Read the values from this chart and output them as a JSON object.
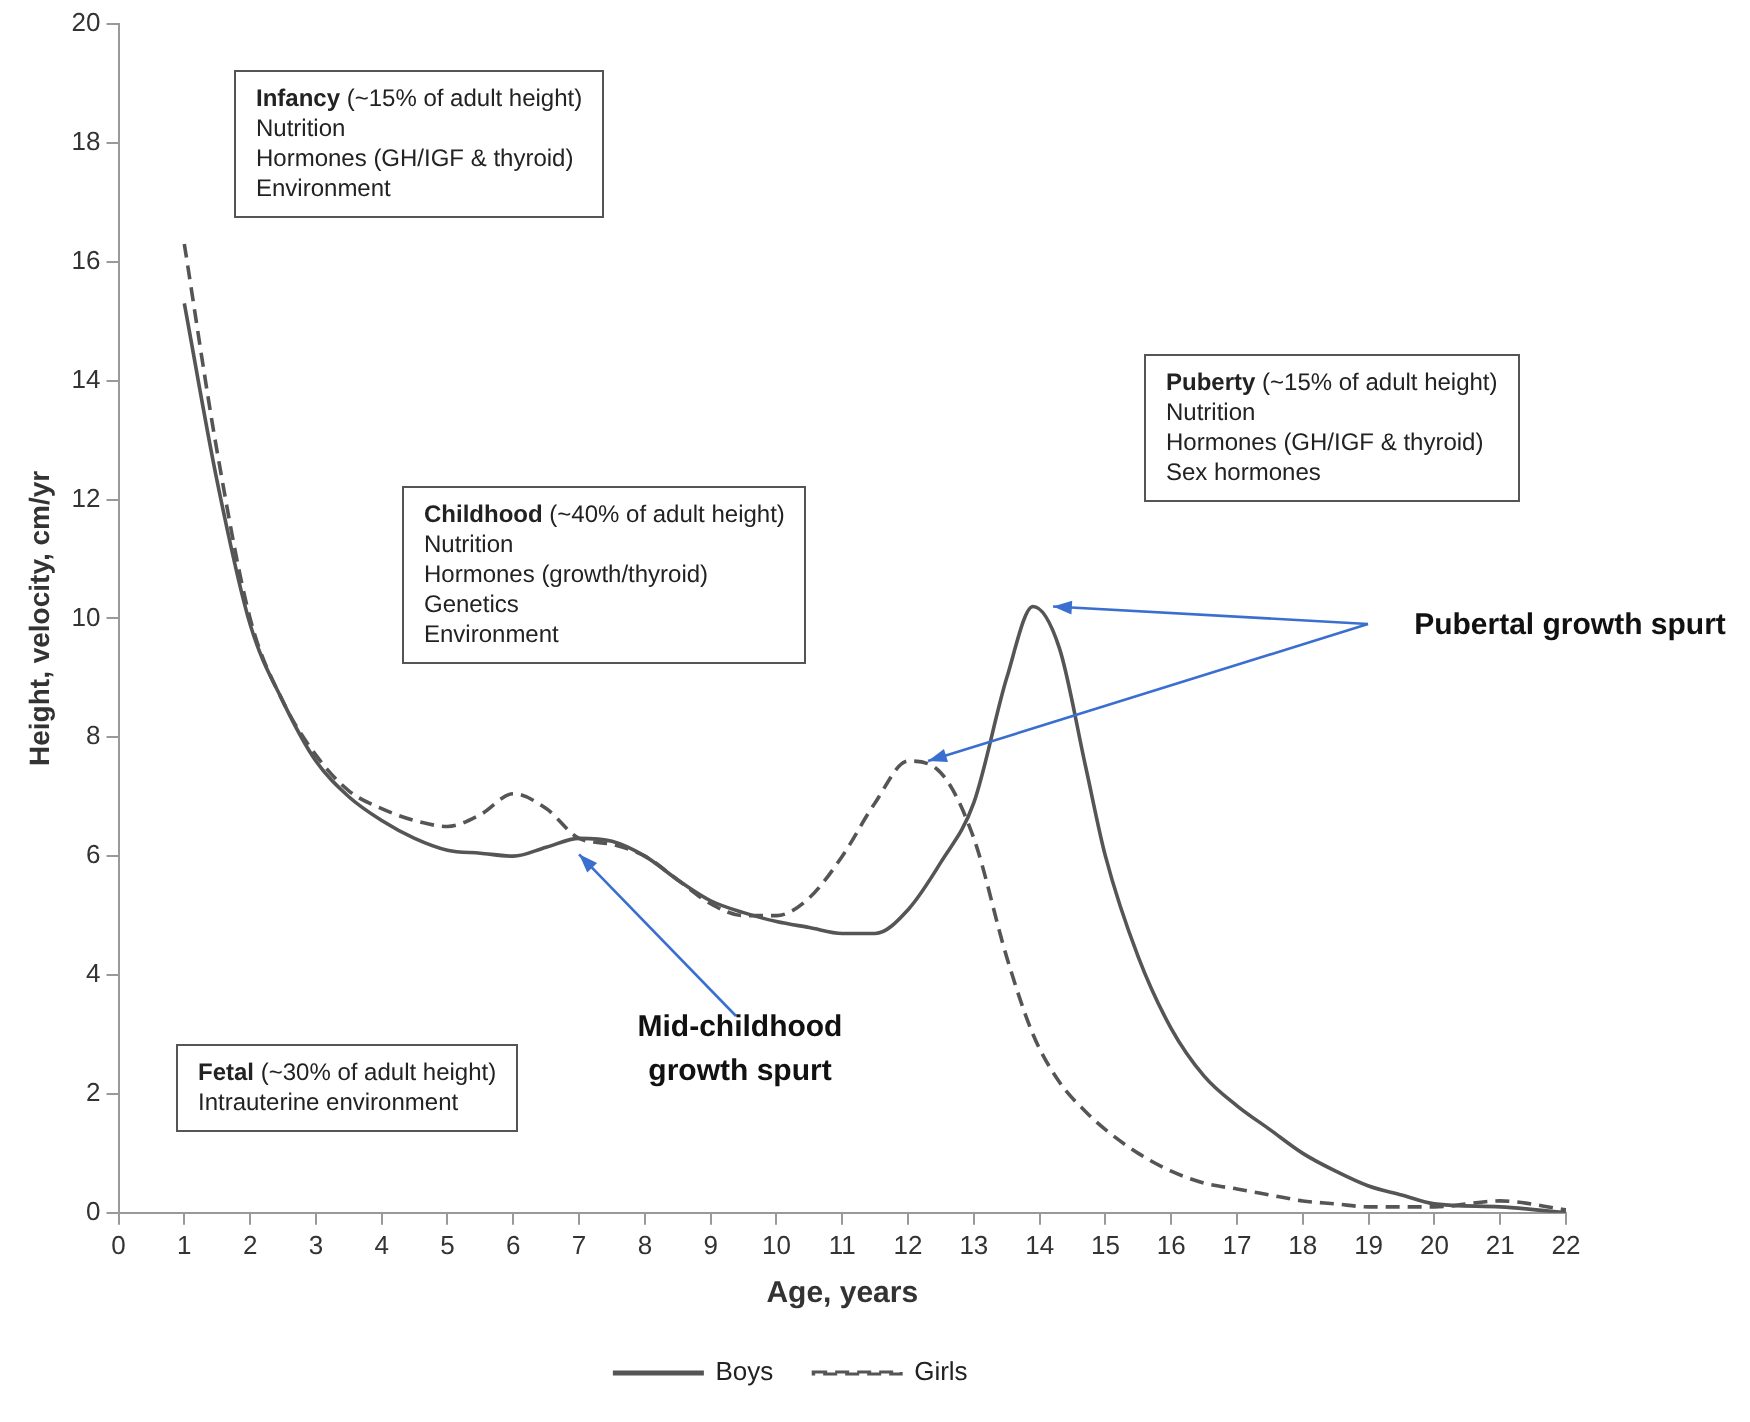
{
  "chart_data": {
    "type": "line",
    "xlabel": "Age, years",
    "ylabel": "Height, velocity, cm/yr",
    "x": [
      1,
      1.5,
      2,
      2.5,
      3,
      3.5,
      4,
      4.5,
      5,
      5.5,
      6,
      6.5,
      7,
      7.5,
      8,
      8.5,
      9,
      9.5,
      10,
      10.5,
      11,
      11.5,
      12,
      12.5,
      13,
      13.5,
      13.9,
      14.3,
      14.7,
      15,
      15.5,
      16,
      16.5,
      17,
      17.5,
      18,
      18.5,
      19,
      19.5,
      20,
      21,
      22
    ],
    "series": [
      {
        "name": "Boys",
        "color": "#555555",
        "line_style": "solid",
        "values": [
          15.3,
          12.3,
          9.9,
          8.6,
          7.6,
          7.0,
          6.6,
          6.3,
          6.1,
          6.05,
          6.0,
          6.15,
          6.3,
          6.25,
          6.0,
          5.6,
          5.25,
          5.05,
          4.9,
          4.8,
          4.7,
          4.7,
          5.1,
          5.9,
          6.9,
          9.0,
          10.2,
          9.5,
          7.5,
          6.0,
          4.3,
          3.1,
          2.3,
          1.8,
          1.4,
          1.0,
          0.7,
          0.45,
          0.3,
          0.15,
          0.1,
          0
        ]
      },
      {
        "name": "Girls",
        "color": "#555555",
        "line_style": "dashed",
        "values": [
          16.3,
          12.8,
          10.0,
          8.6,
          7.7,
          7.1,
          6.8,
          6.6,
          6.5,
          6.7,
          7.05,
          6.8,
          6.3,
          6.2,
          6.0,
          5.6,
          5.2,
          5.0,
          5.0,
          5.3,
          6.0,
          6.9,
          7.6,
          7.4,
          6.3,
          4.3,
          3.0,
          2.2,
          1.7,
          1.4,
          1.0,
          0.7,
          0.5,
          0.4,
          0.3,
          0.2,
          0.15,
          0.1,
          0.1,
          0.1,
          0.2,
          0.05
        ]
      }
    ],
    "xlim": [
      0,
      22
    ],
    "xticks": [
      0,
      1,
      2,
      3,
      4,
      5,
      6,
      7,
      8,
      9,
      10,
      11,
      12,
      13,
      14,
      15,
      16,
      17,
      18,
      19,
      20,
      21,
      22
    ],
    "ylim": [
      0,
      20
    ],
    "yticks": [
      0,
      2,
      4,
      6,
      8,
      10,
      12,
      14,
      16,
      18,
      20
    ],
    "grid": false,
    "legend": "bottom",
    "marker": "none",
    "annotations": [
      "Infancy (~15% of adult height)\nNutrition\nHormones (GH/IGF & thyroid)\nEnvironment",
      "Puberty (~15% of adult height)\nNutrition\nHormones (GH/IGF & thyroid)\nSex hormones",
      "Childhood (~40% of adult height)\nNutrition\nHormones (growth/thyroid)\nGenetics\nEnvironment",
      "Fetal (~30% of adult height)\nIntrauterine environment",
      "Mid-childhood growth spurt",
      "Pubertal growth spurt"
    ]
  }
}
